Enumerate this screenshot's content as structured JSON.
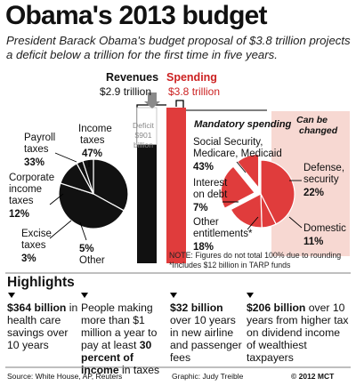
{
  "title": "Obama's 2013 budget",
  "subtitle": "President Barack Obama's budget proposal of $3.8 trillion projects a deficit below a trillion for the first time in five years.",
  "colors": {
    "revenue": "#111111",
    "spending": "#e03c3c",
    "shade": "#f7d8d2",
    "gray": "#8a8a8a",
    "heading_red": "#cc2222"
  },
  "chart_data": [
    {
      "type": "bar",
      "categories": [
        "Revenues",
        "Spending"
      ],
      "values": [
        2.9,
        3.8
      ],
      "value_labels": [
        "$2.9 trillion",
        "$3.8 trillion"
      ],
      "deficit_label": "Deficit $901 billion",
      "ylim": [
        0,
        3.8
      ]
    },
    {
      "type": "pie",
      "title": "",
      "slices": [
        {
          "label": "Payroll taxes",
          "value": 33,
          "value_label": "33%"
        },
        {
          "label": "Income taxes",
          "value": 47,
          "value_label": "47%"
        },
        {
          "label": "Corporate income taxes",
          "value": 12,
          "value_label": "12%"
        },
        {
          "label": "Excise taxes",
          "value": 3,
          "value_label": "3%"
        },
        {
          "label": "Other",
          "value": 5,
          "value_label": "5%"
        }
      ]
    },
    {
      "type": "pie",
      "title": "Mandatory spending",
      "slices": [
        {
          "label": "Social Security, Medicare, Medicaid",
          "value": 43,
          "value_label": "43%"
        },
        {
          "label": "Interest on debt",
          "value": 7,
          "value_label": "7%"
        },
        {
          "label": "Other entitlements*",
          "value": 18,
          "value_label": "18%"
        },
        {
          "label": "Defense, security",
          "value": 22,
          "value_label": "22%"
        },
        {
          "label": "Domestic",
          "value": 11,
          "value_label": "11%"
        }
      ],
      "can_be_changed_label": "Can be changed"
    }
  ],
  "labels": {
    "revenues": "Revenues",
    "spending": "Spending",
    "payroll_1": "Payroll",
    "payroll_2": "taxes",
    "income_1": "Income",
    "income_2": "taxes",
    "corp_1": "Corporate",
    "corp_2": "income",
    "corp_3": "taxes",
    "excise_1": "Excise",
    "excise_2": "taxes",
    "other": "Other",
    "deficit_1": "Deficit",
    "deficit_2": "$901",
    "deficit_3": "billion",
    "mandatory": "Mandatory spending",
    "can_be_1": "Can be",
    "can_be_2": "changed",
    "ss_1": "Social Security,",
    "ss_2": "Medicare, Medicaid",
    "int_1": "Interest",
    "int_2": "on debt",
    "oe_1": "Other",
    "oe_2": "entitlements*",
    "def_1": "Defense,",
    "def_2": "security",
    "dom": "Domestic"
  },
  "notes": {
    "line1": "NOTE: Figures do not total 100% due to rounding",
    "line2": "*Includes $12 billion in TARP funds"
  },
  "highlights": {
    "title": "Highlights",
    "items": [
      {
        "bold": "$364 billion",
        "text": " in health care savings over 10 years"
      },
      {
        "pre": "People making more than $1 million a year to pay at least ",
        "bold": "30 percent of income",
        "text": " in taxes"
      },
      {
        "bold": "$32 billion",
        "text": " over 10 years in new airline and passenger fees"
      },
      {
        "bold": "$206 billion",
        "text": " over 10 years from higher tax on dividend income of wealthiest taxpayers"
      }
    ]
  },
  "footer": {
    "source": "Source: White House, AP, Reuters",
    "graphic": "Graphic: Judy Treible",
    "copyright": "© 2012 MCT"
  }
}
